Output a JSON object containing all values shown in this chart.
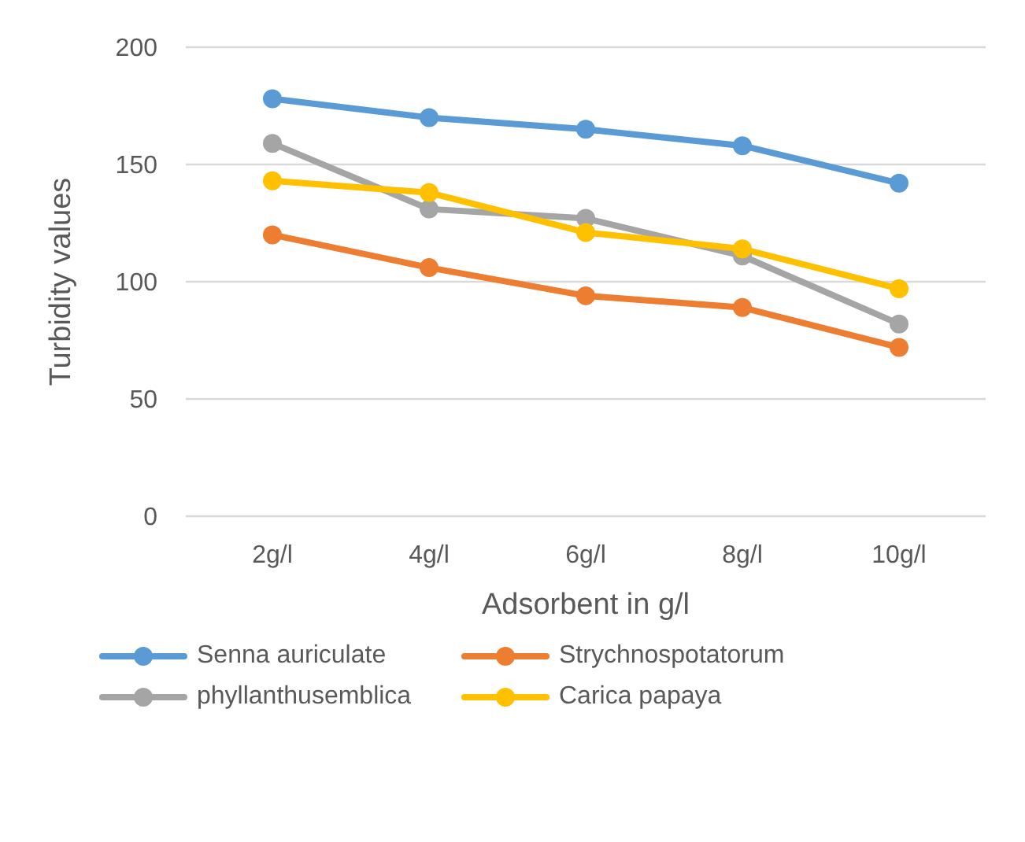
{
  "chart_data": {
    "type": "line",
    "xlabel": "Adsorbent in g/l",
    "ylabel": "Turbidity values",
    "categories": [
      "2g/l",
      "4g/l",
      "6g/l",
      "8g/l",
      "10g/l"
    ],
    "series": [
      {
        "name": "Senna auriculate",
        "color": "#5b9bd5",
        "values": [
          178,
          170,
          165,
          158,
          142
        ]
      },
      {
        "name": "Strychnospotatorum",
        "color": "#ed7d31",
        "values": [
          120,
          106,
          94,
          89,
          72
        ]
      },
      {
        "name": "phyllanthusemblica",
        "color": "#a5a5a5",
        "values": [
          159,
          131,
          127,
          111,
          82
        ]
      },
      {
        "name": "Carica papaya",
        "color": "#ffc000",
        "values": [
          143,
          138,
          121,
          114,
          97
        ]
      }
    ],
    "ylim": [
      0,
      200
    ],
    "yticks": [
      0,
      50,
      100,
      150,
      200
    ],
    "grid": "y",
    "legend": "bottom",
    "marker": "circle",
    "line_style": "solid"
  }
}
